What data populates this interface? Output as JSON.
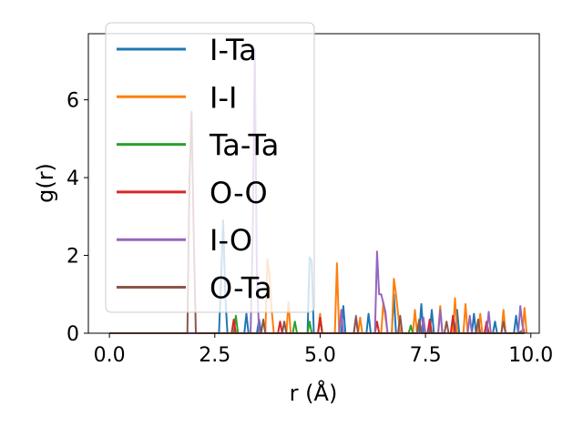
{
  "chart_data": {
    "type": "line",
    "title": "",
    "xlabel": "r (Å)",
    "ylabel": "g(r)",
    "xlim": [
      -0.5,
      10.2
    ],
    "ylim": [
      0,
      7.7
    ],
    "xticks": [
      "0.0",
      "2.5",
      "5.0",
      "7.5",
      "10.0"
    ],
    "xtick_values": [
      0,
      2.5,
      5,
      7.5,
      10
    ],
    "yticks": [
      "0",
      "2",
      "4",
      "6"
    ],
    "ytick_values": [
      0,
      2,
      4,
      6
    ],
    "legend_position": "upper-left",
    "series": [
      {
        "name": "I-Ta",
        "color": "#1f77b4",
        "x": [
          0,
          2.6,
          2.65,
          2.7,
          2.75,
          2.8,
          3.2,
          3.25,
          3.3,
          3.5,
          3.55,
          3.6,
          4.7,
          4.75,
          4.8,
          4.85,
          5.5,
          5.55,
          5.6,
          6.1,
          6.15,
          6.2,
          6.7,
          6.75,
          6.8,
          7.35,
          7.4,
          7.45,
          7.6,
          7.65,
          7.7,
          8.2,
          8.25,
          8.3,
          8.6,
          8.65,
          8.7,
          9.1,
          9.15,
          9.2,
          9.6,
          9.65,
          9.7,
          9.85
        ],
        "y": [
          0,
          0,
          1.4,
          2.9,
          0.9,
          0,
          0,
          0.5,
          0,
          0,
          0.35,
          0,
          0,
          1.95,
          1.85,
          0,
          0,
          0.7,
          0,
          0,
          0.5,
          0,
          0,
          1.0,
          0,
          0,
          0.75,
          0,
          0,
          0.6,
          0,
          0,
          0.6,
          0,
          0,
          0.5,
          0,
          0,
          0.3,
          0,
          0,
          0.45,
          0,
          0.1
        ]
      },
      {
        "name": "I-I",
        "color": "#ff7f0e",
        "x": [
          0,
          3.7,
          3.75,
          3.8,
          3.85,
          3.9,
          4.2,
          4.25,
          4.3,
          4.95,
          5.0,
          5.05,
          5.35,
          5.4,
          5.45,
          5.9,
          5.95,
          6.0,
          6.45,
          6.5,
          6.6,
          6.7,
          6.75,
          6.8,
          6.9,
          7.2,
          7.25,
          7.3,
          7.8,
          7.85,
          7.9,
          8.15,
          8.2,
          8.25,
          8.4,
          8.45,
          8.5,
          8.75,
          8.8,
          8.85,
          9.3,
          9.35,
          9.4,
          9.8,
          9.85,
          9.9
        ],
        "y": [
          0,
          0,
          1.9,
          1.5,
          0.6,
          0,
          0,
          0.8,
          0,
          0,
          0.5,
          0,
          0,
          1.8,
          0,
          0,
          0.4,
          0,
          0,
          0.8,
          0,
          0,
          1.4,
          1.0,
          0,
          0,
          0.6,
          0,
          0,
          0.7,
          0,
          0,
          0.9,
          0,
          0,
          0.75,
          0,
          0,
          0.5,
          0,
          0,
          0.6,
          0,
          0,
          0.65,
          0
        ]
      },
      {
        "name": "Ta-Ta",
        "color": "#2ca02c",
        "x": [
          0,
          2.95,
          3.0,
          3.05,
          4.35,
          4.4,
          4.45,
          4.7,
          4.75,
          4.8,
          4.95,
          5.0,
          5.05,
          7.1,
          7.15,
          7.2,
          9.8
        ],
        "y": [
          0,
          0,
          0.45,
          0,
          0,
          0.3,
          0,
          0,
          0.3,
          0,
          0,
          0.35,
          0,
          0,
          0.2,
          0,
          0
        ]
      },
      {
        "name": "O-O",
        "color": "#d62728",
        "x": [
          0,
          2.9,
          2.95,
          3.0,
          4.0,
          4.05,
          4.1,
          4.95,
          5.0,
          5.05,
          6.3,
          6.35,
          6.4,
          7.55,
          7.6,
          7.65,
          8.1,
          8.15,
          8.2,
          8.9,
          8.95,
          9.0,
          9.8
        ],
        "y": [
          0,
          0,
          0.35,
          0,
          0,
          0.3,
          0,
          0,
          0.4,
          0,
          0,
          0.3,
          0,
          0,
          0.35,
          0,
          0,
          0.45,
          0,
          0,
          0.3,
          0,
          0
        ]
      },
      {
        "name": "I-O",
        "color": "#9467bd",
        "x": [
          0,
          3.35,
          3.4,
          3.45,
          3.5,
          3.55,
          5.45,
          5.5,
          5.55,
          5.8,
          5.85,
          5.9,
          6.3,
          6.35,
          6.4,
          6.45,
          6.55,
          6.6,
          7.4,
          7.45,
          7.5,
          7.8,
          7.85,
          7.9,
          8.5,
          8.55,
          8.6,
          8.95,
          9.0,
          9.05,
          9.7,
          9.75,
          9.8,
          9.85
        ],
        "y": [
          0,
          0,
          2.5,
          7.3,
          1.5,
          0,
          0,
          0.6,
          0,
          0,
          0.45,
          0,
          0,
          2.1,
          1.0,
          1.0,
          0.55,
          0,
          0,
          0.4,
          0,
          0,
          0.6,
          0,
          0,
          0.45,
          0,
          0,
          0.55,
          0,
          0,
          0.7,
          0.2,
          0
        ]
      },
      {
        "name": "O-Ta",
        "color": "#8c564b",
        "x": [
          0,
          1.85,
          1.9,
          1.95,
          2.0,
          2.05,
          3.6,
          3.65,
          3.7,
          4.1,
          4.15,
          4.2,
          5.8,
          5.85,
          5.9,
          6.85,
          6.9,
          6.95,
          7.3,
          7.35,
          7.4,
          7.95,
          8.0,
          8.05,
          8.7,
          8.75,
          8.8,
          9.3,
          9.35,
          9.4,
          9.85
        ],
        "y": [
          0,
          0,
          4.0,
          5.7,
          2.5,
          0,
          0,
          0.35,
          0,
          0,
          0.3,
          0,
          0,
          0.4,
          0,
          0,
          0.45,
          0,
          0,
          0.35,
          0,
          0,
          0.3,
          0,
          0,
          0.35,
          0,
          0,
          0.3,
          0,
          0
        ]
      }
    ]
  }
}
